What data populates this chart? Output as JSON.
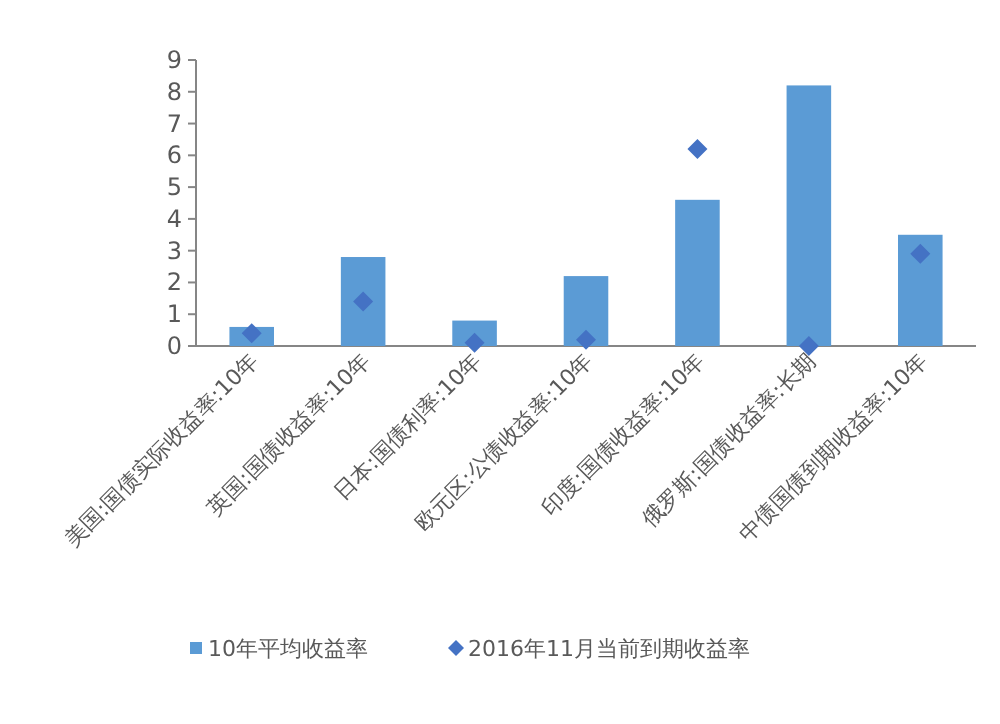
{
  "chart_data": {
    "type": "bar",
    "categories": [
      "美国:国债实际收益率:10年",
      "英国:国债收益率:10年",
      "日本:国债利率:10年",
      "欧元区:公债收益率:10年",
      "印度:国债收益率:10年",
      "俄罗斯:国债收益率:长期",
      "中债国债到期收益率:10年"
    ],
    "series": [
      {
        "name": "10年平均收益率",
        "color": "#5b9bd5",
        "values": [
          0.6,
          2.8,
          0.8,
          2.2,
          4.6,
          8.2,
          3.5
        ]
      },
      {
        "name": "2016年11月当前到期收益率",
        "type": "scatter",
        "marker": "diamond",
        "color": "#4472c4",
        "values": [
          0.4,
          1.4,
          0.1,
          0.2,
          6.2,
          0.0,
          2.9
        ]
      }
    ],
    "ylim": [
      0,
      9
    ],
    "yticks": [
      0,
      1,
      2,
      3,
      4,
      5,
      6,
      7,
      8,
      9
    ],
    "grid": false,
    "legend": "bottom"
  }
}
